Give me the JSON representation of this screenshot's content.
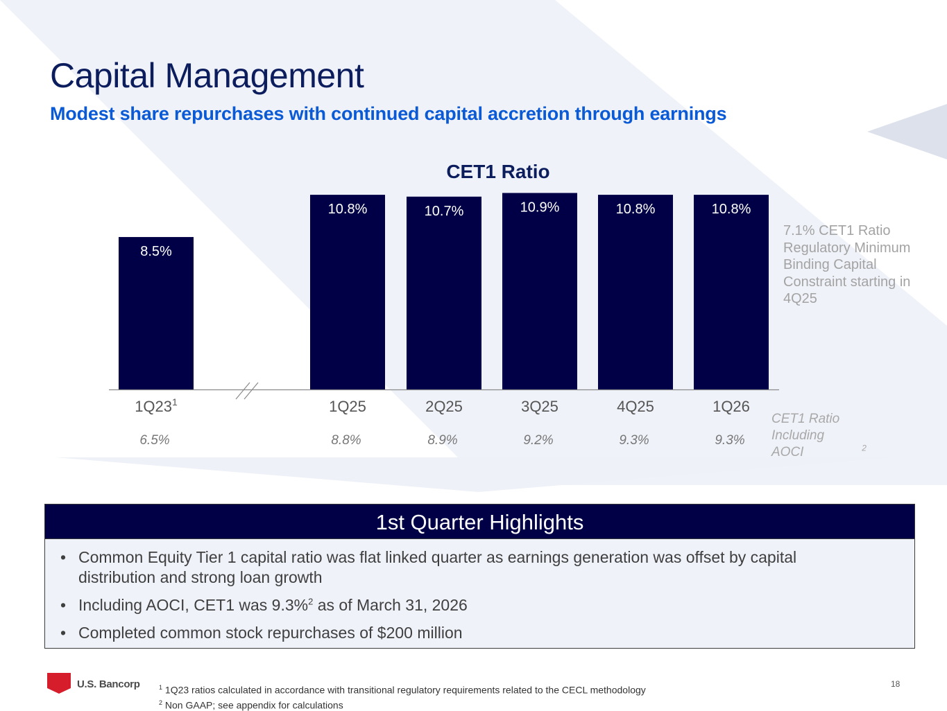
{
  "slide": {
    "title": "Capital Management",
    "subtitle": "Modest share repurchases with continued capital accretion through earnings",
    "page_number": "18"
  },
  "colors": {
    "bar": "#010047",
    "title": "#0c1d5e",
    "subtitle": "#0a5ad6",
    "muted_text": "#a3a3a3",
    "highlight_header_bg": "#010047",
    "highlight_body_bg": "#eff2f9",
    "logo_red": "#d51d2b"
  },
  "chart_data": {
    "type": "bar",
    "title": "CET1 Ratio",
    "xlabel": "",
    "ylabel": "",
    "categories": [
      "1Q23",
      "1Q25",
      "2Q25",
      "3Q25",
      "4Q25",
      "1Q26"
    ],
    "category_superscripts": [
      "1",
      "",
      "",
      "",
      "",
      ""
    ],
    "series": [
      {
        "name": "CET1 Ratio",
        "values": [
          8.5,
          10.8,
          10.7,
          10.9,
          10.8,
          10.8
        ],
        "labels": [
          "8.5%",
          "10.8%",
          "10.7%",
          "10.9%",
          "10.8%",
          "10.8%"
        ]
      },
      {
        "name": "CET1 Ratio Including AOCI",
        "values": [
          6.5,
          8.8,
          8.9,
          9.2,
          9.3,
          9.3
        ],
        "labels": [
          "6.5%",
          "8.8%",
          "8.9%",
          "9.2%",
          "9.3%",
          "9.3%"
        ]
      }
    ],
    "axis_break_after": "1Q23",
    "ylim": [
      0,
      11
    ],
    "grid": false,
    "legend": "none",
    "annotations": {
      "regulatory_minimum": "7.1% CET1 Ratio Regulatory Minimum Binding Capital Constraint starting in 4Q25",
      "aoci_row_label": "CET1 Ratio Including AOCI",
      "aoci_row_superscript": "2"
    }
  },
  "highlights": {
    "header": "1st Quarter Highlights",
    "items": [
      {
        "text": "Common Equity Tier 1 capital ratio was flat linked quarter as earnings generation was offset by capital distribution and strong loan growth",
        "sup": "",
        "tail": ""
      },
      {
        "text": "Including AOCI, CET1 was 9.3%",
        "sup": "2",
        "tail": " as of March 31, 2026"
      },
      {
        "text": "Completed common stock repurchases of $200 million",
        "sup": "",
        "tail": ""
      }
    ]
  },
  "footer": {
    "logo_text": "U.S. Bancorp",
    "logo_icon": "shield-icon",
    "footnotes": [
      {
        "marker": "1",
        "text": "1Q23 ratios calculated in accordance with transitional regulatory requirements related to the CECL methodology"
      },
      {
        "marker": "2",
        "text": "Non GAAP; see appendix for calculations"
      }
    ]
  }
}
